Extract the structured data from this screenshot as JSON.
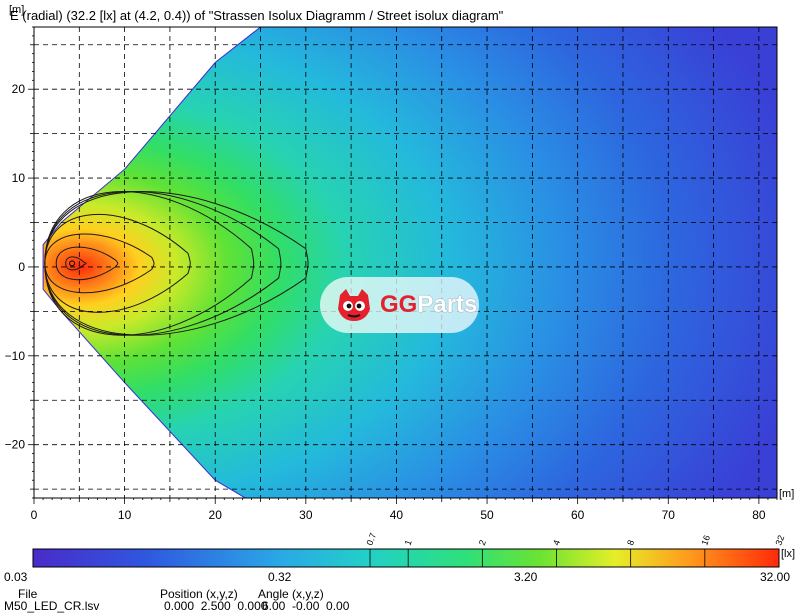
{
  "title": "E (radial) (32.2 [lx] at (4.2, 0.4)) of \"Strassen Isolux Diagramm / Street isolux diagram\"",
  "watermark": {
    "text_a": "GG",
    "text_b": "Parts",
    "logo_icon": "gg-mascot-icon"
  },
  "chart_data": {
    "type": "heatmap",
    "title": "E (radial) (32.2 [lx] at (4.2, 0.4)) of \"Strassen Isolux Diagramm / Street isolux diagram\"",
    "xlabel": "[m]",
    "ylabel": "[m]",
    "xlim": [
      0,
      82
    ],
    "ylim": [
      -26,
      27
    ],
    "x_ticks": [
      0,
      10,
      20,
      30,
      40,
      50,
      60,
      70,
      80
    ],
    "y_ticks": [
      20,
      10,
      0,
      -10,
      -20
    ],
    "grid": true,
    "peak": {
      "value": 32.2,
      "unit": "lx",
      "x": 4.2,
      "y": 0.4
    },
    "contour_levels": [
      "0.7",
      "1",
      "2",
      "4",
      "8",
      "16",
      "32"
    ],
    "isolux_contours": [
      {
        "level": 32,
        "reach_x": 5.5,
        "half_width": 1.0
      },
      {
        "level": 16,
        "reach_x": 9,
        "half_width": 2.5
      },
      {
        "level": 8,
        "reach_x": 13,
        "half_width": 4.5
      },
      {
        "level": 4,
        "reach_x": 17,
        "half_width": 7.5
      },
      {
        "level": 2,
        "reach_x": 24,
        "half_width": 11
      },
      {
        "level": 1,
        "reach_x": 27,
        "half_width": 11
      },
      {
        "level": 0.7,
        "reach_x": 30,
        "half_width": 11
      }
    ],
    "colorbar": {
      "scale": "log",
      "range": [
        0.03,
        32.0
      ],
      "labels": [
        "0.03",
        "0.32",
        "3.20",
        "32.00"
      ],
      "unit": "[lx]"
    }
  },
  "footer": {
    "file_label": "File",
    "file_value": "M50_LED_CR.lsv",
    "position_label": "Position (x,y,z)",
    "position_value": "0.000  2.500  0.000",
    "angle_label": "Angle (x,y,z)",
    "angle_value": "6.00  -0.00  0.00"
  },
  "colors": {
    "low": "#3a2bd4",
    "mid": "#2ee07a",
    "high": "#ff2a0a",
    "grid": "#000000"
  }
}
